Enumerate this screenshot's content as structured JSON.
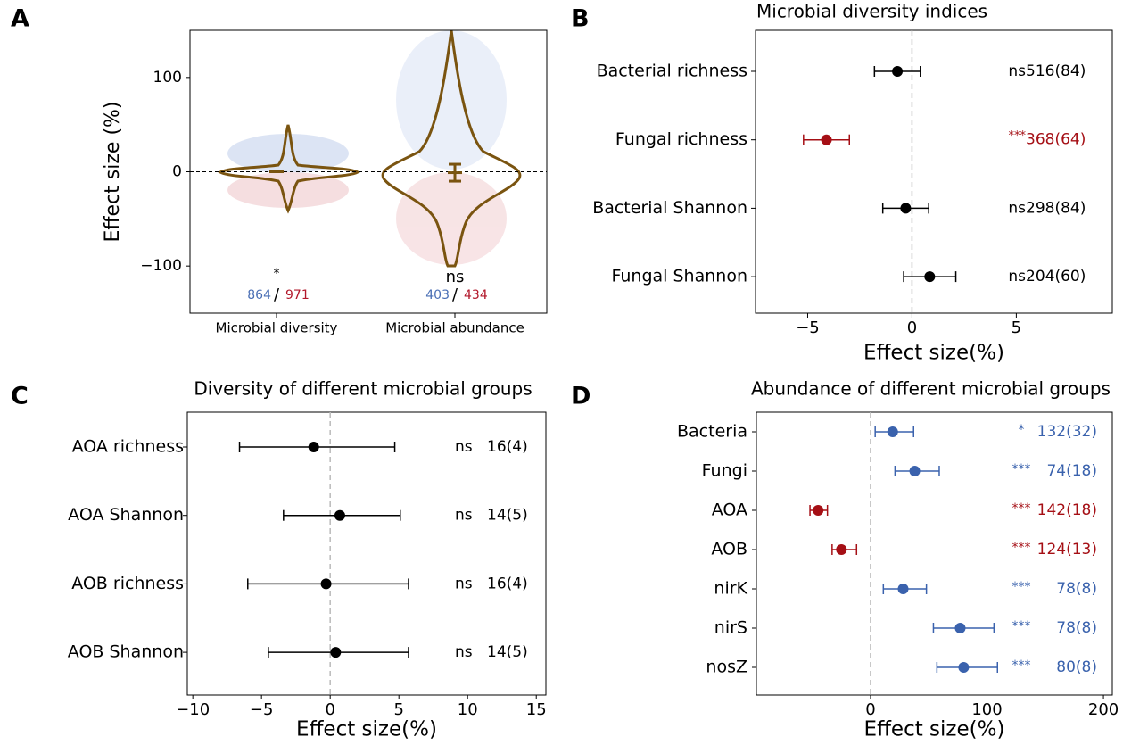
{
  "chart_data": [
    {
      "type": "violin",
      "panel_label": "A",
      "ylabel": "Effect size (%)",
      "categories": [
        "Microbial diversity",
        "Microbial abundance"
      ],
      "ylim": [
        -150,
        150
      ],
      "yticks": [
        {
          "value": -100,
          "label": "−100"
        },
        0,
        100
      ],
      "means": [
        0,
        -1
      ],
      "ci_low": [
        null,
        -10
      ],
      "ci_high": [
        null,
        8
      ],
      "significance": [
        "*",
        "ns"
      ],
      "n_positive": [
        864,
        403
      ],
      "n_negative": [
        971,
        434
      ],
      "separator": "/",
      "positive_color": "#4a6fb5",
      "negative_color": "#b2182b",
      "violin_color": "#7a5410"
    },
    {
      "type": "forest",
      "panel_label": "B",
      "title": "Microbial diversity indices",
      "xlabel": "Effect size(%)",
      "categories": [
        "Bacterial richness",
        "Fungal richness",
        "Bacterial Shannon",
        "Fungal Shannon"
      ],
      "values": [
        -0.7,
        -4.1,
        -0.3,
        0.85
      ],
      "ci_low": [
        -1.8,
        -5.2,
        -1.4,
        -0.4
      ],
      "ci_high": [
        0.4,
        -3.0,
        0.8,
        2.1
      ],
      "colors": [
        "#000000",
        "#a50f15",
        "#000000",
        "#000000"
      ],
      "significance": [
        "ns",
        "***",
        "ns",
        "ns"
      ],
      "n_labels": [
        "516(84)",
        "368(64)",
        "298(84)",
        "204(60)"
      ],
      "xlim": [
        -7.5,
        9.6
      ],
      "xticks": [
        {
          "value": -5,
          "label": "−5"
        },
        0,
        5
      ]
    },
    {
      "type": "forest",
      "panel_label": "C",
      "title": "Diversity of different microbial groups",
      "xlabel": "Effect size(%)",
      "categories": [
        "AOA richness",
        "AOA Shannon",
        "AOB richness",
        "AOB Shannon"
      ],
      "values": [
        -1.2,
        0.7,
        -0.3,
        0.4
      ],
      "ci_low": [
        -6.6,
        -3.4,
        -6.0,
        -4.5
      ],
      "ci_high": [
        4.7,
        5.1,
        5.7,
        5.7
      ],
      "colors": [
        "#000000",
        "#000000",
        "#000000",
        "#000000"
      ],
      "significance": [
        "ns",
        "ns",
        "ns",
        "ns"
      ],
      "n_labels": [
        "16(4)",
        "14(5)",
        "16(4)",
        "14(5)"
      ],
      "xlim": [
        -10.4,
        15.7
      ],
      "xticks": [
        {
          "value": -10,
          "label": "−10"
        },
        {
          "value": -5,
          "label": "−5"
        },
        0,
        5,
        10,
        15
      ]
    },
    {
      "type": "forest",
      "panel_label": "D",
      "title": "Abundance of different microbial groups",
      "xlabel": "Effect size(%)",
      "categories": [
        "Bacteria",
        "Fungi",
        "AOA",
        "AOB",
        "nirK",
        "nirS",
        "nosZ"
      ],
      "values": [
        19,
        38,
        -45,
        -25,
        28,
        77,
        80
      ],
      "ci_low": [
        4,
        21,
        -52,
        -33,
        11,
        54,
        57
      ],
      "ci_high": [
        37,
        59,
        -37,
        -12,
        48,
        106,
        109
      ],
      "colors": [
        "#3a62ad",
        "#3a62ad",
        "#a50f15",
        "#a50f15",
        "#3a62ad",
        "#3a62ad",
        "#3a62ad"
      ],
      "significance": [
        "*",
        "***",
        "***",
        "***",
        "***",
        "***",
        "***"
      ],
      "n_labels": [
        "132(32)",
        "74(18)",
        "142(18)",
        "124(13)",
        "78(8)",
        "78(8)",
        "80(8)"
      ],
      "xlim": [
        -98,
        207.6
      ],
      "xticks": [
        0,
        100,
        200
      ]
    }
  ]
}
